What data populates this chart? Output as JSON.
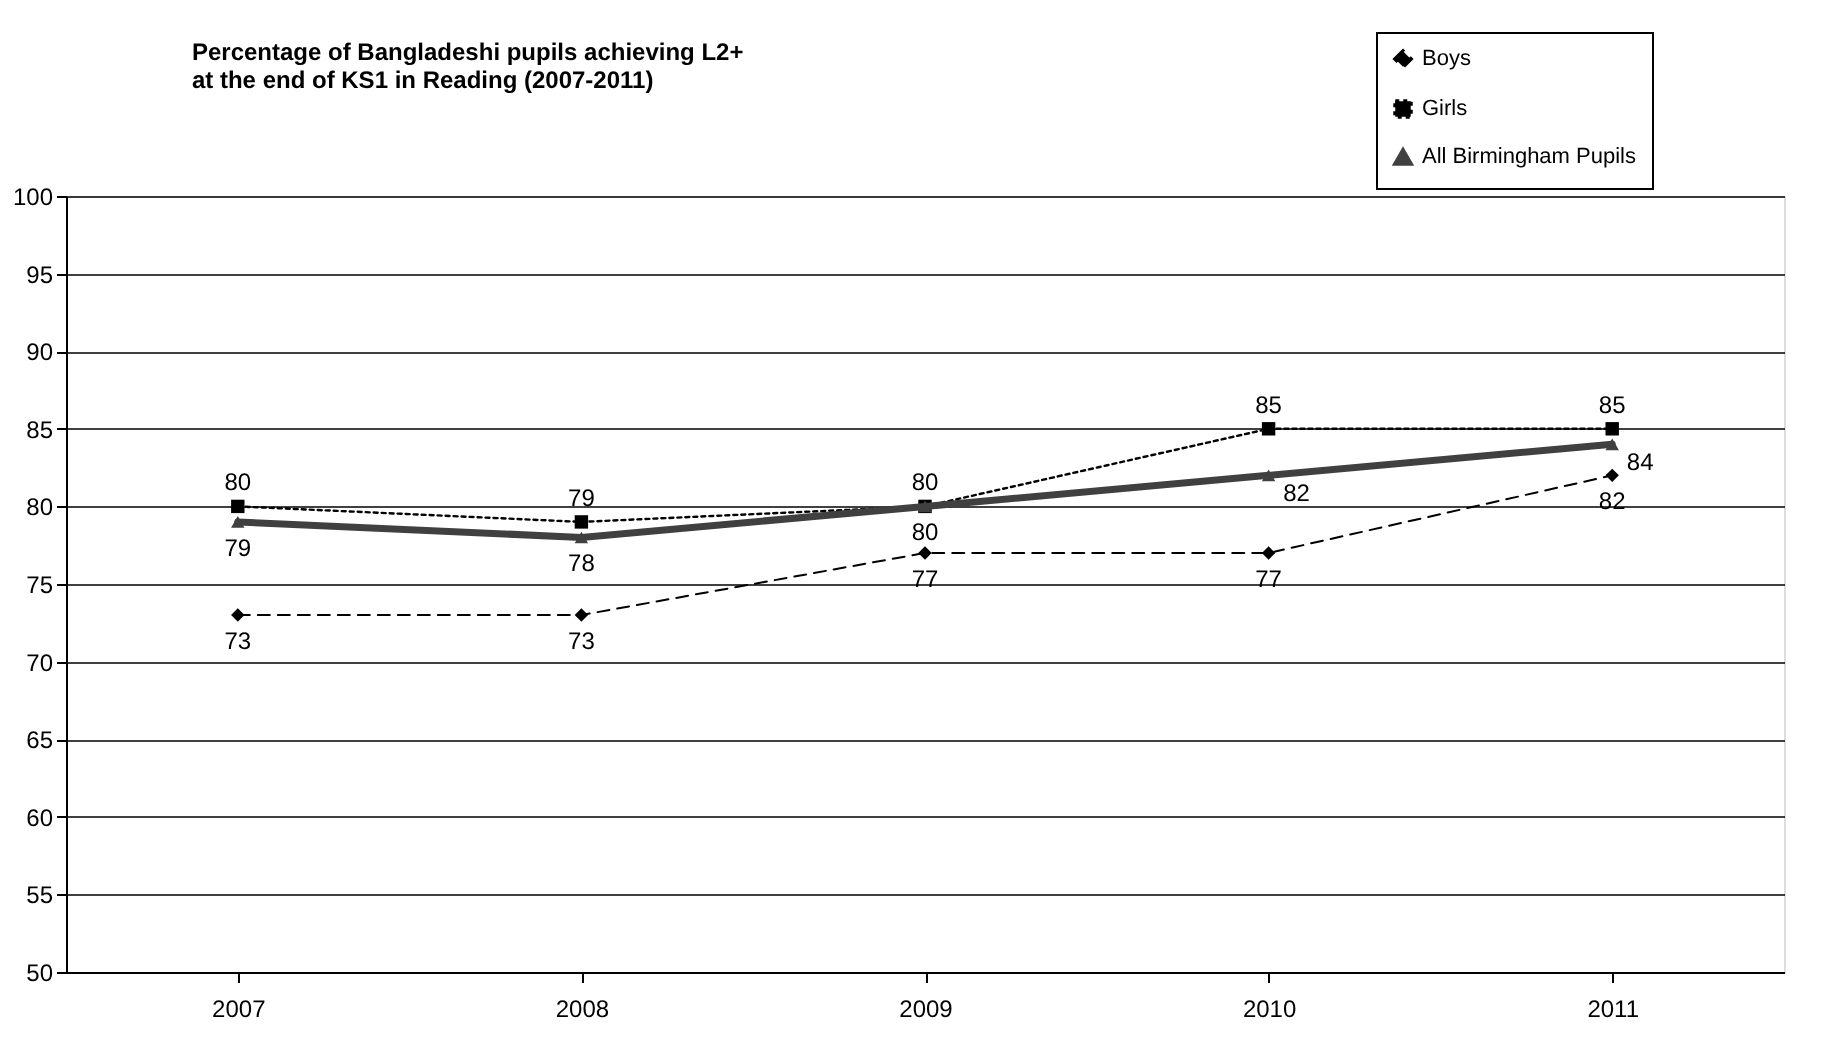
{
  "chart_data": {
    "type": "line",
    "title": [
      "Percentage of Bangladeshi pupils achieving L2+",
      "at the end of KS1 in Reading (2007-2011)"
    ],
    "categories": [
      "2007",
      "2008",
      "2009",
      "2010",
      "2011"
    ],
    "series": [
      {
        "name": "Boys",
        "color": "#000000",
        "values": [
          73,
          73,
          77,
          77,
          82
        ],
        "line_style": "dashed",
        "marker": "diamond"
      },
      {
        "name": "Girls",
        "color": "#000000",
        "values": [
          80,
          79,
          80,
          85,
          85
        ],
        "line_style": "dotted",
        "marker": "square"
      },
      {
        "name": "All Birmingham Pupils",
        "color": "#404040",
        "values": [
          79,
          78,
          80,
          82,
          84
        ],
        "line_style": "solid",
        "marker": "triangle"
      }
    ],
    "ylim": [
      50,
      100
    ],
    "yticks": [
      50,
      55,
      60,
      65,
      70,
      75,
      80,
      85,
      90,
      95,
      100
    ],
    "grid": "y",
    "legend": "top right",
    "data_labels": true
  }
}
